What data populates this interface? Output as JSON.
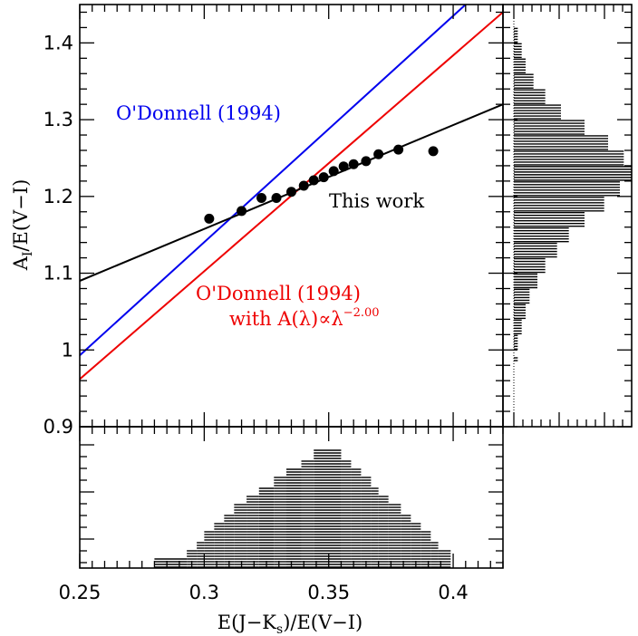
{
  "chart_data": {
    "type": "scatter",
    "title": "",
    "xlabel": "E(J−K",
    "xlabel_sub": "s",
    "xlabel_tail": ")/E(V−I)",
    "ylabel": "A",
    "ylabel_sub": "I",
    "ylabel_tail": "/E(V−I)",
    "xlim": [
      0.25,
      0.42
    ],
    "ylim": [
      0.9,
      1.45
    ],
    "x_ticks": [
      0.25,
      0.3,
      0.35,
      0.4
    ],
    "x_tick_labels": [
      "0.25",
      "0.3",
      "0.35",
      "0.4"
    ],
    "y_ticks": [
      0.9,
      1.0,
      1.1,
      1.2,
      1.3,
      1.4
    ],
    "y_tick_labels": [
      "0.9",
      "1",
      "1.1",
      "1.2",
      "1.3",
      "1.4"
    ],
    "grid": false,
    "points": [
      {
        "x": 0.302,
        "y": 1.171
      },
      {
        "x": 0.315,
        "y": 1.181
      },
      {
        "x": 0.323,
        "y": 1.198
      },
      {
        "x": 0.329,
        "y": 1.198
      },
      {
        "x": 0.335,
        "y": 1.206
      },
      {
        "x": 0.34,
        "y": 1.214
      },
      {
        "x": 0.344,
        "y": 1.221
      },
      {
        "x": 0.348,
        "y": 1.225
      },
      {
        "x": 0.352,
        "y": 1.233
      },
      {
        "x": 0.356,
        "y": 1.239
      },
      {
        "x": 0.36,
        "y": 1.242
      },
      {
        "x": 0.365,
        "y": 1.246
      },
      {
        "x": 0.37,
        "y": 1.255
      },
      {
        "x": 0.378,
        "y": 1.261
      },
      {
        "x": 0.392,
        "y": 1.259
      }
    ],
    "lines": [
      {
        "label": "O'Donnell (1994)",
        "color": "#0000ee",
        "x0": 0.25,
        "y0": 0.993,
        "x1": 0.405,
        "y1": 1.45
      },
      {
        "label": "O'Donnell (1994)",
        "label2": "with A(λ)∝λ",
        "label2_sup": "−2.00",
        "color": "#ee0000",
        "x0": 0.25,
        "y0": 0.962,
        "x1": 0.42,
        "y1": 1.44
      },
      {
        "label": "This work",
        "color": "#000000",
        "x0": 0.25,
        "y0": 1.09,
        "x1": 0.42,
        "y1": 1.32
      }
    ],
    "hist_x": {
      "bins": [
        {
          "x0": 0.28,
          "x1": 0.293,
          "count": 1
        },
        {
          "x0": 0.293,
          "x1": 0.297,
          "count": 2
        },
        {
          "x0": 0.297,
          "x1": 0.3,
          "count": 3
        },
        {
          "x0": 0.3,
          "x1": 0.304,
          "count": 4
        },
        {
          "x0": 0.304,
          "x1": 0.308,
          "count": 5
        },
        {
          "x0": 0.308,
          "x1": 0.312,
          "count": 6
        },
        {
          "x0": 0.312,
          "x1": 0.317,
          "count": 7
        },
        {
          "x0": 0.317,
          "x1": 0.322,
          "count": 8
        },
        {
          "x0": 0.322,
          "x1": 0.328,
          "count": 9
        },
        {
          "x0": 0.328,
          "x1": 0.333,
          "count": 10
        },
        {
          "x0": 0.333,
          "x1": 0.339,
          "count": 11
        },
        {
          "x0": 0.339,
          "x1": 0.344,
          "count": 12
        },
        {
          "x0": 0.344,
          "x1": 0.355,
          "count": 13
        },
        {
          "x0": 0.355,
          "x1": 0.359,
          "count": 12
        },
        {
          "x0": 0.359,
          "x1": 0.363,
          "count": 11
        },
        {
          "x0": 0.363,
          "x1": 0.367,
          "count": 10
        },
        {
          "x0": 0.367,
          "x1": 0.37,
          "count": 9
        },
        {
          "x0": 0.37,
          "x1": 0.374,
          "count": 8
        },
        {
          "x0": 0.374,
          "x1": 0.379,
          "count": 7
        },
        {
          "x0": 0.379,
          "x1": 0.383,
          "count": 6
        },
        {
          "x0": 0.383,
          "x1": 0.387,
          "count": 5
        },
        {
          "x0": 0.387,
          "x1": 0.391,
          "count": 4
        },
        {
          "x0": 0.391,
          "x1": 0.394,
          "count": 3
        },
        {
          "x0": 0.394,
          "x1": 0.399,
          "count": 2
        }
      ],
      "max_count": 13
    },
    "hist_y": {
      "bins": [
        {
          "y0": 0.985,
          "y1": 0.99,
          "count": 1
        },
        {
          "y0": 1.0,
          "y1": 1.02,
          "count": 1
        },
        {
          "y0": 1.02,
          "y1": 1.04,
          "count": 2
        },
        {
          "y0": 1.04,
          "y1": 1.06,
          "count": 3
        },
        {
          "y0": 1.06,
          "y1": 1.08,
          "count": 4
        },
        {
          "y0": 1.08,
          "y1": 1.1,
          "count": 6
        },
        {
          "y0": 1.1,
          "y1": 1.12,
          "count": 8
        },
        {
          "y0": 1.12,
          "y1": 1.14,
          "count": 11
        },
        {
          "y0": 1.14,
          "y1": 1.16,
          "count": 14
        },
        {
          "y0": 1.16,
          "y1": 1.18,
          "count": 18
        },
        {
          "y0": 1.18,
          "y1": 1.2,
          "count": 23
        },
        {
          "y0": 1.2,
          "y1": 1.22,
          "count": 27
        },
        {
          "y0": 1.22,
          "y1": 1.24,
          "count": 30
        },
        {
          "y0": 1.24,
          "y1": 1.26,
          "count": 28
        },
        {
          "y0": 1.26,
          "y1": 1.28,
          "count": 24
        },
        {
          "y0": 1.28,
          "y1": 1.3,
          "count": 18
        },
        {
          "y0": 1.3,
          "y1": 1.32,
          "count": 12
        },
        {
          "y0": 1.32,
          "y1": 1.34,
          "count": 8
        },
        {
          "y0": 1.34,
          "y1": 1.36,
          "count": 5
        },
        {
          "y0": 1.36,
          "y1": 1.38,
          "count": 3
        },
        {
          "y0": 1.38,
          "y1": 1.4,
          "count": 2
        },
        {
          "y0": 1.4,
          "y1": 1.42,
          "count": 1
        }
      ],
      "max_count": 30
    }
  }
}
